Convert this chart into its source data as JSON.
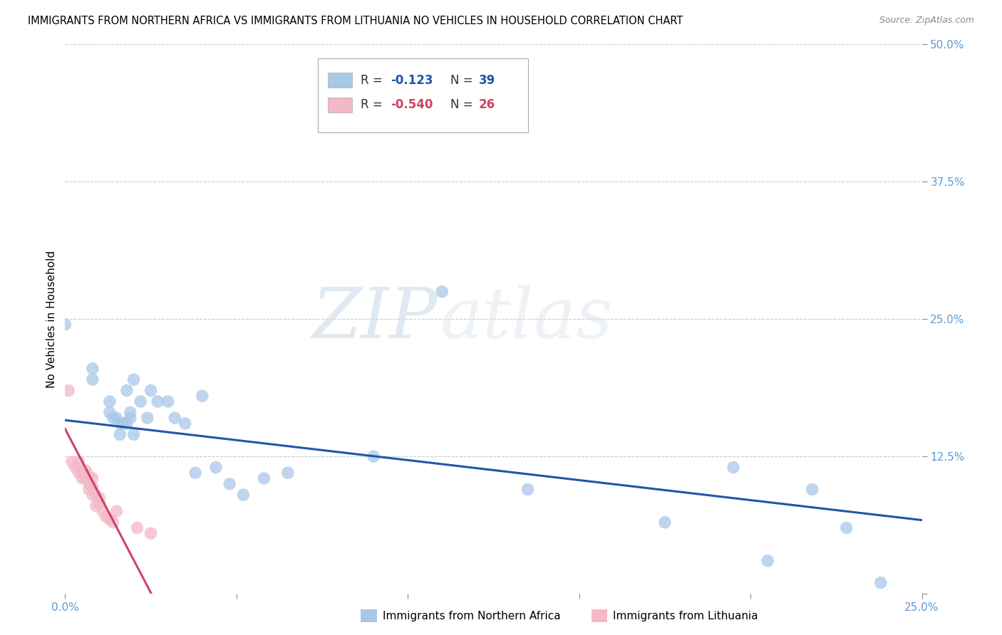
{
  "title": "IMMIGRANTS FROM NORTHERN AFRICA VS IMMIGRANTS FROM LITHUANIA NO VEHICLES IN HOUSEHOLD CORRELATION CHART",
  "source": "Source: ZipAtlas.com",
  "ylabel_label": "No Vehicles in Household",
  "xlim": [
    0.0,
    0.25
  ],
  "ylim": [
    0.0,
    0.5
  ],
  "xticks": [
    0.0,
    0.05,
    0.1,
    0.15,
    0.2,
    0.25
  ],
  "yticks": [
    0.0,
    0.125,
    0.25,
    0.375,
    0.5
  ],
  "blue_color": "#a8c8e8",
  "pink_color": "#f4b8c8",
  "blue_line_color": "#2255aa",
  "pink_line_color": "#cc4466",
  "blue_scatter_x": [
    0.0,
    0.008,
    0.008,
    0.013,
    0.013,
    0.014,
    0.015,
    0.016,
    0.016,
    0.017,
    0.018,
    0.018,
    0.019,
    0.019,
    0.02,
    0.02,
    0.022,
    0.024,
    0.025,
    0.027,
    0.03,
    0.032,
    0.035,
    0.038,
    0.04,
    0.044,
    0.048,
    0.052,
    0.058,
    0.065,
    0.09,
    0.11,
    0.135,
    0.175,
    0.195,
    0.205,
    0.218,
    0.228,
    0.238
  ],
  "blue_scatter_y": [
    0.245,
    0.195,
    0.205,
    0.165,
    0.175,
    0.16,
    0.16,
    0.155,
    0.145,
    0.155,
    0.155,
    0.185,
    0.16,
    0.165,
    0.145,
    0.195,
    0.175,
    0.16,
    0.185,
    0.175,
    0.175,
    0.16,
    0.155,
    0.11,
    0.18,
    0.115,
    0.1,
    0.09,
    0.105,
    0.11,
    0.125,
    0.275,
    0.095,
    0.065,
    0.115,
    0.03,
    0.095,
    0.06,
    0.01
  ],
  "pink_scatter_x": [
    0.001,
    0.002,
    0.003,
    0.004,
    0.004,
    0.005,
    0.005,
    0.006,
    0.006,
    0.007,
    0.007,
    0.007,
    0.008,
    0.008,
    0.008,
    0.009,
    0.009,
    0.01,
    0.01,
    0.011,
    0.012,
    0.013,
    0.014,
    0.015,
    0.021,
    0.025
  ],
  "pink_scatter_y": [
    0.185,
    0.12,
    0.115,
    0.11,
    0.12,
    0.105,
    0.11,
    0.105,
    0.112,
    0.095,
    0.1,
    0.107,
    0.09,
    0.097,
    0.105,
    0.08,
    0.09,
    0.082,
    0.087,
    0.075,
    0.07,
    0.068,
    0.065,
    0.075,
    0.06,
    0.055
  ],
  "blue_trendline_x": [
    0.0,
    0.25
  ],
  "blue_trendline_y": [
    0.158,
    0.067
  ],
  "pink_trendline_x": [
    0.0,
    0.026
  ],
  "pink_trendline_y": [
    0.15,
    -0.005
  ],
  "legend_r1_prefix": "R = ",
  "legend_r1_value": "-0.123",
  "legend_n1_prefix": "N = ",
  "legend_n1_value": "39",
  "legend_r2_prefix": "R = ",
  "legend_r2_value": "-0.540",
  "legend_n2_prefix": "N = ",
  "legend_n2_value": "26",
  "legend_label1": "Immigrants from Northern Africa",
  "legend_label2": "Immigrants from Lithuania",
  "watermark_zip": "ZIP",
  "watermark_atlas": "atlas"
}
